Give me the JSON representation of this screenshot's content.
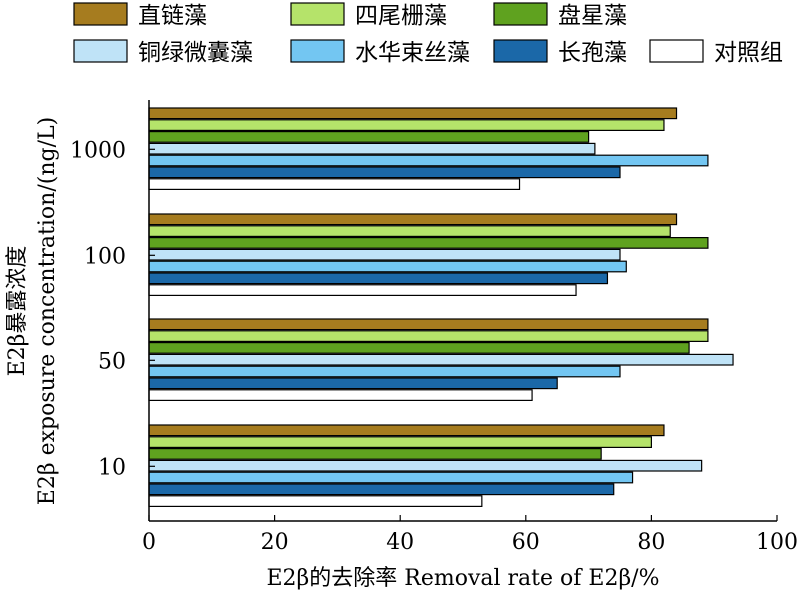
{
  "chart_data": {
    "type": "bar",
    "orientation": "horizontal",
    "xlabel": "E2β的去除率 Removal rate of E2β/%",
    "ylabel_line1": "E2β暴露浓度",
    "ylabel_line2": "E2β exposure concentration/(ng/L)",
    "xlim": [
      0,
      100
    ],
    "xticks": [
      0,
      20,
      40,
      60,
      80,
      100
    ],
    "categories": [
      "1000",
      "100",
      "50",
      "10"
    ],
    "legend_position": "top",
    "grid": false,
    "series": [
      {
        "name": "直链藻",
        "color": "#A67C1F",
        "values": [
          84,
          84,
          89,
          82
        ]
      },
      {
        "name": "四尾栅藻",
        "color": "#B5E36A",
        "values": [
          82,
          83,
          89,
          80
        ]
      },
      {
        "name": "盘星藻",
        "color": "#5FA21F",
        "values": [
          70,
          89,
          86,
          72
        ]
      },
      {
        "name": "铜绿微囊藻",
        "color": "#BFE3F7",
        "values": [
          71,
          75,
          93,
          88
        ]
      },
      {
        "name": "水华束丝藻",
        "color": "#73C6F2",
        "values": [
          89,
          76,
          75,
          77
        ]
      },
      {
        "name": "长孢藻",
        "color": "#1B68A8",
        "values": [
          75,
          73,
          65,
          74
        ]
      },
      {
        "name": "对照组",
        "color": "#FFFFFF",
        "values": [
          59,
          68,
          61,
          53
        ]
      }
    ]
  }
}
